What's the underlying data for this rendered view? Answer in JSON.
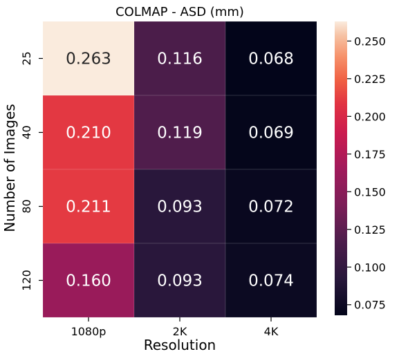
{
  "chart_data": {
    "type": "heatmap",
    "title": "COLMAP - ASD (mm)",
    "xlabel": "Resolution",
    "ylabel": "Number of Images",
    "x_categories": [
      "1080p",
      "2K",
      "4K"
    ],
    "y_categories": [
      "25",
      "40",
      "80",
      "120"
    ],
    "values": [
      [
        0.263,
        0.116,
        0.068
      ],
      [
        0.21,
        0.119,
        0.069
      ],
      [
        0.211,
        0.093,
        0.072
      ],
      [
        0.16,
        0.093,
        0.074
      ]
    ],
    "value_labels": [
      [
        "0.263",
        "0.116",
        "0.068"
      ],
      [
        "0.210",
        "0.119",
        "0.069"
      ],
      [
        "0.211",
        "0.093",
        "0.072"
      ],
      [
        "0.160",
        "0.093",
        "0.074"
      ]
    ],
    "colormap": "rocket",
    "colorbar": {
      "range": [
        0.068,
        0.263
      ],
      "ticks": [
        0.075,
        0.1,
        0.125,
        0.15,
        0.175,
        0.2,
        0.225,
        0.25
      ],
      "tick_labels": [
        "0.075",
        "0.100",
        "0.125",
        "0.150",
        "0.175",
        "0.200",
        "0.225",
        "0.250"
      ]
    },
    "grid": false,
    "colors": {
      "text_light": "#ffffff",
      "text_dark": "#262626"
    }
  }
}
